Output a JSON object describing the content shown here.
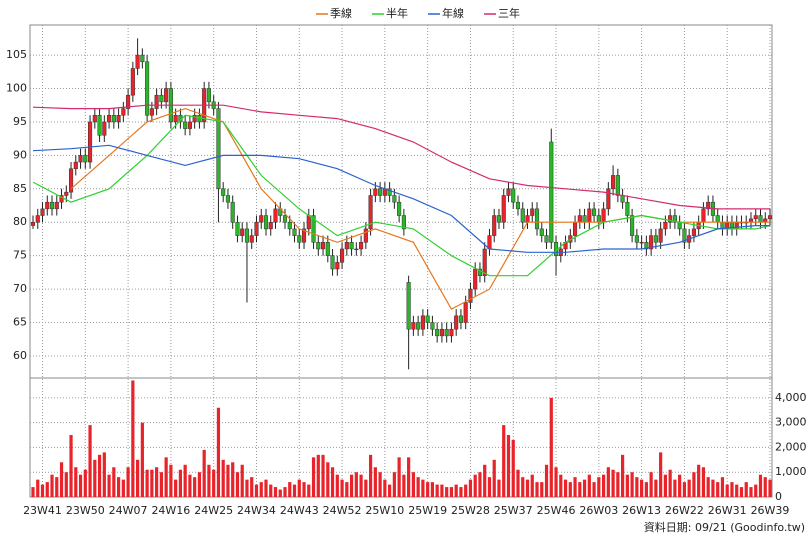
{
  "chart_data": {
    "type": "candlestick",
    "categories": [
      null,
      null,
      "23W41",
      null,
      null,
      null,
      null,
      null,
      null,
      null,
      null,
      "23W50",
      null,
      null,
      null,
      null,
      null,
      null,
      null,
      null,
      "24W07",
      null,
      null,
      null,
      null,
      null,
      null,
      null,
      null,
      "24W16",
      null,
      null,
      null,
      null,
      null,
      null,
      null,
      null,
      "24W25",
      null,
      null,
      null,
      null,
      null,
      null,
      null,
      null,
      "24W34",
      null,
      null,
      null,
      null,
      null,
      null,
      null,
      null,
      "24W43",
      null,
      null,
      null,
      null,
      null,
      null,
      null,
      null,
      "24W52",
      null,
      null,
      null,
      null,
      null,
      null,
      null,
      null,
      "25W10",
      null,
      null,
      null,
      null,
      null,
      null,
      null,
      null,
      "25W19",
      null,
      null,
      null,
      null,
      null,
      null,
      null,
      null,
      "25W28",
      null,
      null,
      null,
      null,
      null,
      null,
      null,
      null,
      "25W37",
      null,
      null,
      null,
      null,
      null,
      null,
      null,
      null,
      "25W46",
      null,
      null,
      null,
      null,
      null,
      null,
      null,
      null,
      "26W03",
      null,
      null,
      null,
      null,
      null,
      null,
      null,
      null,
      "26W13",
      null,
      null,
      null,
      null,
      null,
      null,
      null,
      null,
      "26W22",
      null,
      null,
      null,
      null,
      null,
      null,
      null,
      null,
      "26W31",
      null,
      null,
      null,
      null,
      null,
      null,
      null,
      null,
      "26W39"
    ],
    "open": [
      79.5,
      80,
      81,
      82,
      83,
      82,
      83,
      84,
      84.5,
      88,
      89,
      90,
      89,
      95,
      96,
      93,
      95,
      96,
      95,
      96,
      97,
      99,
      103,
      105,
      104,
      96,
      97,
      99,
      98,
      100,
      95,
      96,
      95,
      94,
      95,
      96,
      95,
      100,
      98,
      97,
      85,
      84,
      83,
      80,
      78,
      79,
      77,
      78,
      80,
      81,
      79,
      80,
      82,
      81,
      80,
      79,
      78,
      77,
      79,
      81,
      77,
      76,
      77,
      75,
      73,
      74,
      76,
      77,
      76,
      76,
      77,
      79,
      84,
      85,
      84,
      85,
      84,
      83,
      81,
      71,
      64,
      65,
      64,
      66,
      65,
      64,
      63,
      64,
      63,
      64,
      66,
      65,
      68,
      70,
      73,
      72,
      76,
      78,
      81,
      80,
      84,
      85,
      83,
      82,
      80,
      81,
      82,
      79,
      78,
      92,
      77,
      75,
      76,
      77,
      78,
      80,
      81,
      80,
      82,
      81,
      80,
      82,
      85,
      87,
      84,
      83,
      81,
      78,
      77,
      77,
      76,
      78,
      77,
      79,
      80,
      81,
      80,
      79,
      77,
      78,
      79,
      80,
      82,
      83,
      81,
      80,
      79,
      80,
      79,
      80,
      80,
      80,
      80.5,
      81,
      80,
      80.5
    ],
    "high": [
      81,
      82,
      83,
      84,
      84,
      84,
      85,
      85.5,
      89,
      90,
      91,
      91,
      96,
      97,
      97,
      96,
      97,
      97,
      97,
      98,
      100,
      104,
      107.5,
      106,
      105,
      98,
      100,
      100,
      101,
      101,
      97,
      97,
      96,
      96,
      97,
      97,
      101,
      101,
      99,
      98,
      86,
      85,
      84,
      81,
      80,
      80,
      79,
      81,
      82,
      82,
      81,
      83,
      83,
      82,
      81,
      80,
      79,
      80,
      82,
      82,
      78,
      78,
      78,
      76,
      75,
      77,
      78,
      78,
      77,
      78,
      80,
      85,
      86,
      86,
      86,
      86,
      85,
      84,
      82,
      72,
      66,
      66,
      67,
      67,
      66,
      65,
      65,
      65,
      65,
      67,
      67,
      69,
      71,
      74,
      74,
      77,
      79,
      82,
      82,
      85,
      86,
      86,
      84,
      83,
      82,
      83,
      83,
      80,
      79,
      94,
      78,
      77,
      78,
      79,
      81,
      82,
      82,
      83,
      83,
      82,
      83,
      86,
      88.5,
      88,
      85,
      84,
      82,
      79,
      78,
      78,
      79,
      79,
      80,
      81,
      82,
      82,
      81,
      80,
      79,
      80,
      81,
      83,
      84,
      84,
      82,
      81,
      81,
      81,
      81,
      81,
      81,
      81.5,
      82,
      82,
      81.5,
      82
    ],
    "low": [
      79,
      79,
      80,
      81,
      81,
      81,
      82,
      83,
      83.5,
      87,
      88,
      88,
      88,
      94,
      92,
      92,
      94,
      94,
      94,
      95,
      96,
      98,
      102,
      103,
      95,
      95,
      96,
      97,
      97,
      94,
      94,
      94,
      93,
      93,
      94,
      94,
      94,
      97,
      96,
      80,
      83,
      82,
      79,
      77,
      77,
      68,
      76,
      77,
      79,
      78,
      78,
      79,
      80,
      79,
      78,
      77,
      76,
      76,
      78,
      76,
      75,
      75,
      74,
      72,
      72,
      73,
      75,
      75,
      75,
      75,
      76,
      78,
      83,
      83,
      83,
      83,
      82,
      80,
      78,
      58,
      63,
      63,
      63,
      64,
      63,
      62,
      62,
      62,
      62,
      63,
      64,
      64,
      67,
      69,
      71,
      71,
      75,
      77,
      79,
      79,
      83,
      82,
      81,
      79,
      79,
      80,
      78,
      77,
      76,
      76,
      72,
      74,
      75,
      76,
      77,
      79,
      79,
      79,
      80,
      79,
      79,
      81,
      84,
      83,
      82,
      80,
      77,
      76,
      76,
      75,
      75,
      76,
      76,
      78,
      79,
      79,
      78,
      76,
      76,
      77,
      78,
      79,
      81,
      80,
      79,
      78,
      78,
      78,
      78,
      79,
      79,
      79,
      79.5,
      79,
      79,
      79.5
    ],
    "close": [
      80,
      81,
      82,
      83,
      82,
      83,
      84,
      84.5,
      88,
      89,
      90,
      89,
      95,
      96,
      93,
      95,
      96,
      95,
      96,
      97,
      99,
      103,
      105,
      104,
      96,
      97,
      99,
      98,
      100,
      95,
      96,
      95,
      94,
      95,
      96,
      95,
      100,
      98,
      97,
      85,
      84,
      83,
      80,
      78,
      79,
      77,
      78,
      80,
      81,
      79,
      80,
      82,
      81,
      80,
      79,
      78,
      77,
      79,
      81,
      77,
      76,
      77,
      75,
      73,
      74,
      76,
      77,
      76,
      76,
      77,
      79,
      84,
      85,
      84,
      85,
      84,
      83,
      81,
      79,
      64,
      65,
      64,
      66,
      65,
      64,
      63,
      64,
      63,
      64,
      66,
      65,
      68,
      70,
      73,
      72,
      76,
      78,
      81,
      80,
      84,
      85,
      83,
      82,
      80,
      81,
      82,
      79,
      78,
      77,
      77,
      75,
      76,
      77,
      78,
      80,
      81,
      80,
      82,
      81,
      80,
      82,
      85,
      87,
      84,
      83,
      81,
      78,
      77,
      77,
      76,
      78,
      77,
      79,
      80,
      81,
      80,
      79,
      77,
      78,
      79,
      80,
      82,
      83,
      81,
      80,
      79,
      80,
      79,
      80,
      80,
      80,
      80.5,
      81,
      80,
      80.5,
      81
    ],
    "up_color": "#e8232a",
    "down_color": "#2ab52a",
    "ylim": [
      56.7,
      109.5
    ],
    "yticks": [
      60,
      65,
      70,
      75,
      80,
      85,
      90,
      95,
      100,
      105
    ],
    "grid": true,
    "legend": "top",
    "series": [
      {
        "name": "季線",
        "color": "#e8761c",
        "x": [
          8,
          16,
          24,
          32,
          40,
          48,
          56,
          64,
          72,
          80,
          88,
          96,
          104,
          112,
          120,
          128,
          136,
          144,
          152,
          155
        ],
        "values": [
          85,
          90,
          95,
          97,
          95,
          85,
          79,
          77,
          79,
          77,
          67,
          70,
          80,
          80,
          80,
          81,
          80,
          80,
          80,
          80
        ]
      },
      {
        "name": "半年",
        "color": "#2fd12f",
        "x": [
          0,
          8,
          16,
          24,
          32,
          40,
          48,
          56,
          64,
          72,
          80,
          88,
          96,
          104,
          112,
          120,
          128,
          136,
          144,
          152,
          155
        ],
        "values": [
          86,
          83,
          85,
          90,
          96,
          95,
          87,
          82,
          78,
          80,
          79,
          75,
          72,
          72,
          77,
          80,
          81,
          80,
          79,
          79,
          79.5
        ]
      },
      {
        "name": "年線",
        "color": "#2b62cf",
        "x": [
          0,
          8,
          16,
          24,
          32,
          40,
          48,
          56,
          64,
          72,
          80,
          88,
          96,
          104,
          112,
          120,
          128,
          136,
          144,
          152,
          155
        ],
        "values": [
          90.7,
          91,
          91.5,
          90,
          88.5,
          90,
          90,
          89.5,
          88,
          85.5,
          83.5,
          81,
          76,
          75.5,
          75.5,
          76,
          76,
          77,
          79,
          79.5,
          79.5
        ]
      },
      {
        "name": "三年",
        "color": "#d42a6e",
        "x": [
          0,
          8,
          16,
          24,
          32,
          40,
          48,
          56,
          64,
          72,
          80,
          88,
          96,
          104,
          112,
          120,
          128,
          136,
          144,
          152,
          155
        ],
        "values": [
          97.2,
          97,
          97,
          97.5,
          97.5,
          97.5,
          96.5,
          96,
          95.5,
          94,
          92,
          89,
          86.5,
          85.5,
          85,
          84.5,
          83.5,
          82.5,
          82,
          82,
          82
        ]
      }
    ],
    "volume": {
      "color": "#e8232a",
      "ylim": [
        0,
        4800
      ],
      "yticks": [
        0,
        {
          "value": 1000,
          "label": "1,000"
        },
        {
          "value": 2000,
          "label": "2,000"
        },
        {
          "value": 3000,
          "label": "3,000"
        },
        {
          "value": 4000,
          "label": "4,000"
        }
      ],
      "values": [
        400,
        700,
        500,
        600,
        900,
        800,
        1400,
        1000,
        2500,
        1200,
        900,
        1100,
        2900,
        1500,
        1700,
        1800,
        900,
        1200,
        800,
        700,
        1200,
        4700,
        1500,
        3000,
        1100,
        1100,
        1200,
        1000,
        1600,
        1300,
        700,
        1100,
        1300,
        900,
        800,
        1000,
        1900,
        1300,
        1100,
        3600,
        1500,
        1300,
        1400,
        1000,
        1300,
        700,
        800,
        500,
        600,
        700,
        500,
        400,
        300,
        400,
        600,
        500,
        700,
        600,
        500,
        1600,
        1700,
        1700,
        1400,
        1200,
        900,
        700,
        600,
        900,
        1000,
        900,
        700,
        1700,
        1200,
        1000,
        700,
        500,
        1000,
        1600,
        900,
        1600,
        1000,
        800,
        700,
        600,
        600,
        500,
        500,
        400,
        400,
        500,
        400,
        500,
        700,
        900,
        1000,
        1300,
        800,
        1500,
        700,
        2900,
        2500,
        2300,
        1100,
        800,
        700,
        900,
        600,
        600,
        1300,
        4000,
        1200,
        900,
        700,
        600,
        800,
        600,
        700,
        900,
        600,
        800,
        900,
        1200,
        1100,
        1000,
        1700,
        900,
        1000,
        800,
        700,
        600,
        1000,
        700,
        1800,
        900,
        1100,
        700,
        900,
        600,
        700,
        1000,
        1300,
        1200,
        800,
        700,
        600,
        800,
        500,
        600,
        500,
        400,
        600,
        400,
        500,
        900,
        800,
        700
      ]
    },
    "footnote": "資料日期: 09/21  (Goodinfo.tw)"
  }
}
